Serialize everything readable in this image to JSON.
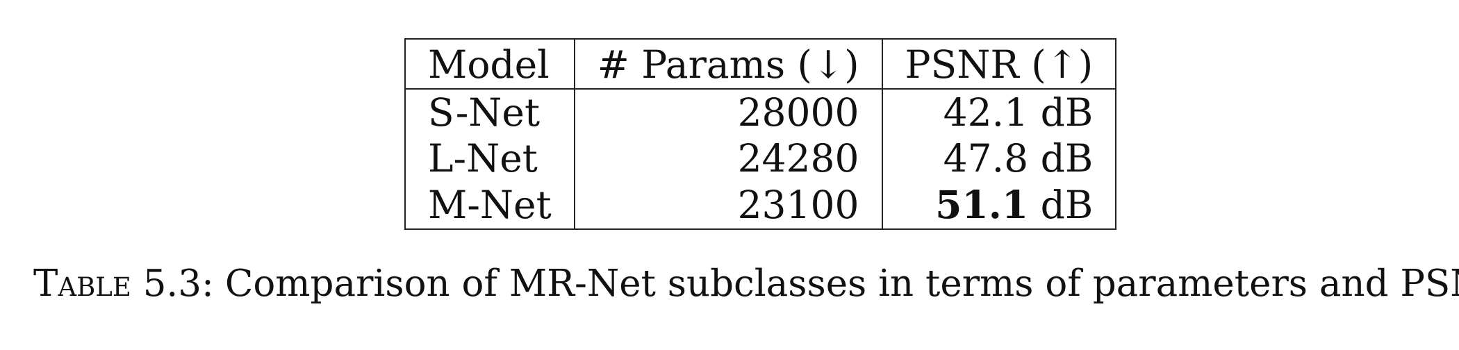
{
  "table": {
    "headers": [
      "Model",
      "# Params (↓)",
      "PSNR (↑)"
    ],
    "rows": [
      {
        "model": "S-Net",
        "params": "28000",
        "psnr_value": "42.1",
        "psnr_unit": "dB"
      },
      {
        "model": "L-Net",
        "params": "24280",
        "psnr_value": "47.8",
        "psnr_unit": "dB"
      },
      {
        "model": "M-Net",
        "params": "23100",
        "psnr_value": "51.1",
        "psnr_unit": "dB"
      }
    ]
  },
  "caption": {
    "label": "Table 5.3:",
    "text": "Comparison of MR-Net subclasses in terms of parameters and PSNR."
  }
}
